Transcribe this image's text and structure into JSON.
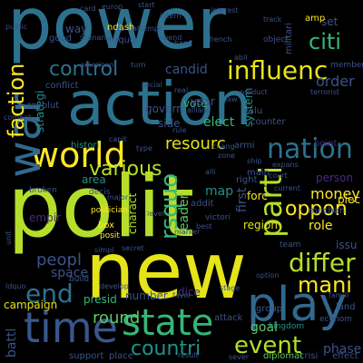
{
  "background": "#000000",
  "palette": [
    "#440154",
    "#3b528b",
    "#21918c",
    "#5ec962",
    "#fde725",
    "#b5de2b",
    "#2c728e",
    "#472d7b",
    "#35b779"
  ],
  "words": {
    "power": "power",
    "action": "action",
    "polit": "polit",
    "new": "new",
    "play": "play",
    "time": "time",
    "state": "state",
    "world": "world",
    "war": "war",
    "faction": "faction",
    "control": "control",
    "influenc": "influenc",
    "citi": "citi",
    "nation": "nation",
    "parti": "parti",
    "differ": "differ",
    "end": "end",
    "event": "event",
    "countri": "countri",
    "mani": "mani",
    "oppon": "oppon",
    "round": "round",
    "peopl": "peopl",
    "money": "money",
    "resourc": "resourc",
    "rsquo": "rsquo",
    "various": "various",
    "candid": "candid",
    "order": "order",
    "way": "way",
    "leader": "leader",
    "role": "role",
    "space": "space",
    "presid": "presid",
    "number": "number",
    "campaign": "campaign",
    "region": "region",
    "dice": "dice",
    "goal": "goal",
    "phase": "phase",
    "battl": "battl",
    "support": "support",
    "place": "place",
    "map": "map",
    "forc": "forc",
    "elect": "elect",
    "vote": "vote",
    "side": "side",
    "year": "year",
    "govern": "govern",
    "area": "area",
    "empir": "empir",
    "strategi": "strategi",
    "first": "first",
    "charact": "charact",
    "ndash": "ndash",
    "system": "system",
    "person": "person",
    "set": "set",
    "amp": "amp",
    "histori": "histori",
    "polititian": "politician",
    "group": "group",
    "land": "land",
    "attack": "attack",
    "kingdom": "kingdom",
    "crisi": "crisi",
    "effect": "effect",
    "diplomat": "diplomat",
    "mechan": "mechan",
    "piec": "piec",
    "issu": "issu",
    "team": "team",
    "box": "box",
    "posit": "posit",
    "valu": "valu",
    "militari": "militari",
    "europ": "europ",
    "rdquo": "rdquo",
    "lddquo": "ldquo",
    "counter": "counter",
    "build": "build",
    "develop": "develop",
    "control_small": "control",
    "result": "result",
    "unit": "unit",
    "main": "main",
    "right": "right",
    "addit": "addit",
    "point": "point",
    "decis": "decis",
    "major": "major",
    "object": "object",
    "member": "member",
    "track": "track",
    "card": "card",
    "good": "good",
    "revolut": "revolut",
    "conflict": "conflict",
    "combat": "combat",
    "victori": "victori",
    "secret": "secret",
    "simpl": "simpl",
    "stage": "stage",
    "option": "option",
    "famili": "famili",
    "econom": "econom",
    "sever": "sever",
    "favor": "favor",
    "ship": "ship",
    "alli": "alli",
    "chang": "chang",
    "scenario": "scenario",
    "attempt": "attempt",
    "start": "start",
    "public": "public",
    "american": "american",
    "broken": "broken",
    "turn": "turn",
    "vp": "vp",
    "french": "french",
    "marker": "marker",
    "zone": "zone",
    "rule": "rule",
    "hand": "hand",
    "spend": "spend",
    "allianc": "allianc",
    "real": "real",
    "armi": "armi",
    "interest": "interest",
    "intern": "intern",
    "social": "social",
    "law": "law",
    "terrorist": "terrorist",
    "best": "best",
    "abil": "abil",
    "product": "product",
    "capit": "capit",
    "type": "type",
    "level": "level",
    "current": "current",
    "expans": "expans",
    "court": "court"
  }
}
